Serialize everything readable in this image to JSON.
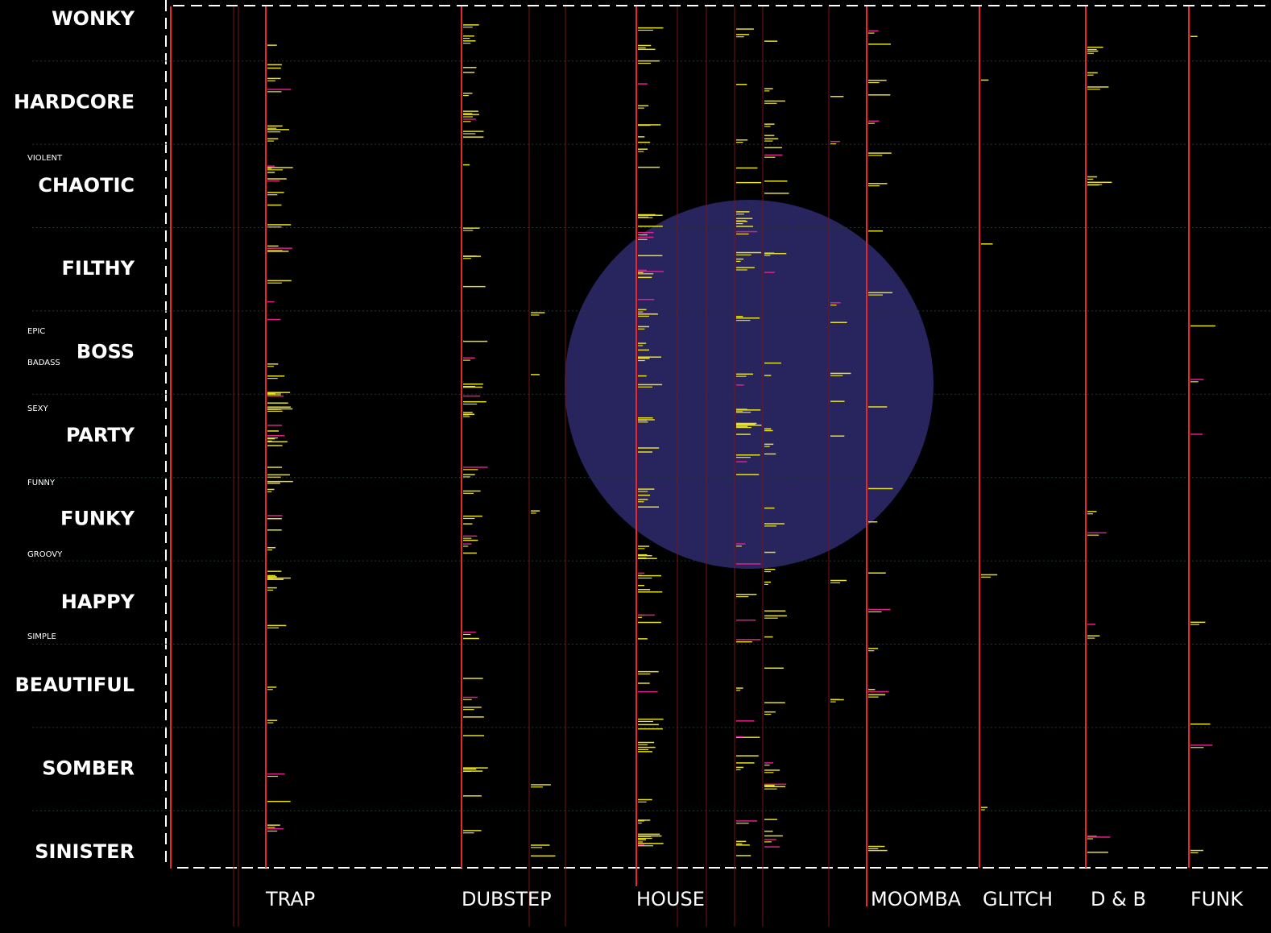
{
  "moods": [
    "WONKY",
    "HARDCORE",
    "CHAOTIC",
    "FILTHY",
    "BOSS",
    "PARTY",
    "FUNKY",
    "HAPPY",
    "BEAUTIFUL",
    "SOMBER",
    "SINISTER"
  ],
  "sub_moods": [
    "VIOLENT",
    "EPIC",
    "BADASS",
    "SEXY",
    "FUNNY",
    "GROOVY",
    "SIMPLE"
  ],
  "genres": [
    "TRAP",
    "DUBSTEP",
    "HOUSE",
    "MOOMBA",
    "GLITCH",
    "D & B",
    "FUNK"
  ]
}
